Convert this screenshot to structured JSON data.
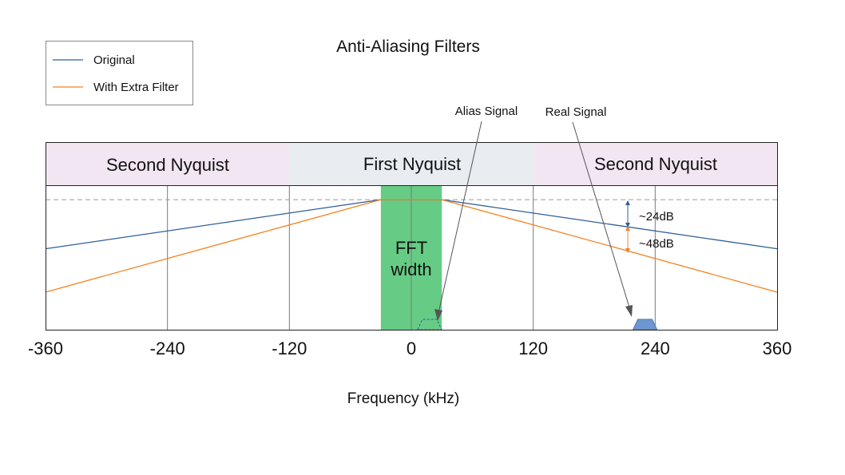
{
  "title": "Anti-Aliasing Filters",
  "xlabel": "Frequency (kHz)",
  "legend": [
    {
      "name": "Original",
      "color": "#2e5f97"
    },
    {
      "name": "With Extra Filter",
      "color": "#f58220"
    }
  ],
  "zones": {
    "left": "Second Nyquist",
    "center": "First Nyquist",
    "right": "Second Nyquist",
    "side_color": "#f3e6f3",
    "center_color": "#e9edf2"
  },
  "fft_band": {
    "label_line1": "FFT",
    "label_line2": "width",
    "x_range": [
      -30,
      30
    ],
    "color": "#66cc85"
  },
  "annotations": {
    "alias_signal": "Alias Signal",
    "real_signal": "Real Signal",
    "db_24": "~24dB",
    "db_48": "~48dB"
  },
  "chart_data": {
    "type": "line",
    "xlim": [
      -360,
      360
    ],
    "x_ticks": [
      "-360",
      "-240",
      "-120",
      "0",
      "120",
      "240",
      "360"
    ],
    "x_tick_values": [
      -360,
      -240,
      -120,
      0,
      120,
      240,
      360
    ],
    "ylim": [
      0,
      1
    ],
    "passband_level": 0.9,
    "series": [
      {
        "name": "Original",
        "x": [
          -360,
          -30,
          30,
          360
        ],
        "y": [
          0.56,
          0.9,
          0.9,
          0.56
        ]
      },
      {
        "name": "With Extra Filter",
        "x": [
          -360,
          -30,
          30,
          360
        ],
        "y": [
          0.26,
          0.9,
          0.9,
          0.26
        ]
      }
    ],
    "signals": [
      {
        "name": "Alias Signal",
        "center": 18,
        "style": "dashed"
      },
      {
        "name": "Real Signal",
        "center": 230,
        "style": "filled"
      }
    ]
  }
}
